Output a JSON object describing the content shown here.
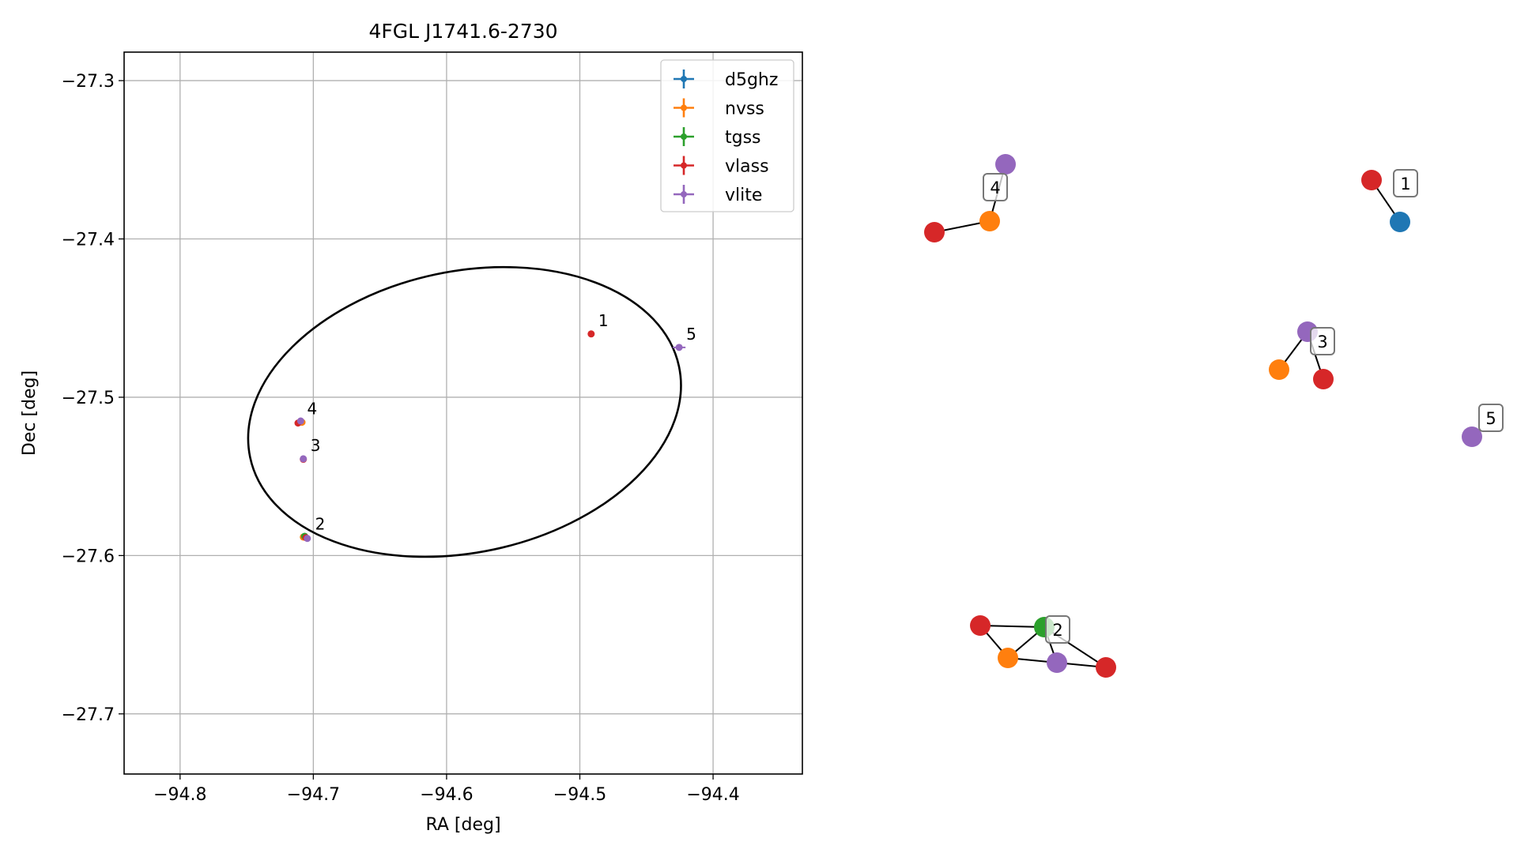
{
  "chart_data": [
    {
      "type": "scatter",
      "title": "4FGL J1741.6-2730",
      "xlabel": "RA [deg]",
      "ylabel": "Dec [deg]",
      "xlim": [
        -94.842,
        -94.333
      ],
      "ylim": [
        -27.738,
        -27.282
      ],
      "xticks": [
        -94.8,
        -94.7,
        -94.6,
        -94.5,
        -94.4
      ],
      "xtick_labels": [
        "−94.8",
        "−94.7",
        "−94.6",
        "−94.5",
        "−94.4"
      ],
      "yticks": [
        -27.3,
        -27.4,
        -27.5,
        -27.6,
        -27.7
      ],
      "ytick_labels": [
        "−27.3",
        "−27.4",
        "−27.5",
        "−27.6",
        "−27.7"
      ],
      "grid": true,
      "legend": {
        "placement": "top-right",
        "entries": [
          {
            "name": "d5ghz",
            "color": "#1f77b4"
          },
          {
            "name": "nvss",
            "color": "#ff7f0e"
          },
          {
            "name": "tgss",
            "color": "#2ca02c"
          },
          {
            "name": "vlass",
            "color": "#d62728"
          },
          {
            "name": "vlite",
            "color": "#9467bd"
          }
        ]
      },
      "ellipse": {
        "center": [
          -94.5865,
          -27.5093
        ],
        "semi_major_ra": 0.1645,
        "semi_minor_dec": 0.0888,
        "color": "#000000"
      },
      "series": [
        {
          "name": "d5ghz",
          "color": "#1f77b4",
          "points": []
        },
        {
          "name": "nvss",
          "color": "#ff7f0e",
          "points": [
            {
              "x": -94.7075,
              "y": -27.5883
            },
            {
              "x": -94.7085,
              "y": -27.5158
            }
          ]
        },
        {
          "name": "tgss",
          "color": "#2ca02c",
          "points": [
            {
              "x": -94.7065,
              "y": -27.5878
            }
          ]
        },
        {
          "name": "vlass",
          "color": "#d62728",
          "points": [
            {
              "x": -94.4915,
              "y": -27.46
            },
            {
              "x": -94.7075,
              "y": -27.5392
            },
            {
              "x": -94.7115,
              "y": -27.5163
            },
            {
              "x": -94.7055,
              "y": -27.5887
            }
          ]
        },
        {
          "name": "vlite",
          "color": "#9467bd",
          "points": [
            {
              "x": -94.4255,
              "y": -27.4685,
              "xerr": 0.0048
            },
            {
              "x": -94.7075,
              "y": -27.5389
            },
            {
              "x": -94.7045,
              "y": -27.5892
            },
            {
              "x": -94.7095,
              "y": -27.515
            }
          ]
        }
      ],
      "annotations": [
        {
          "text": "1",
          "x": -94.4915,
          "y": -27.46
        },
        {
          "text": "2",
          "x": -94.704,
          "y": -27.5885
        },
        {
          "text": "3",
          "x": -94.7075,
          "y": -27.539
        },
        {
          "text": "4",
          "x": -94.71,
          "y": -27.5158
        },
        {
          "text": "5",
          "x": -94.4255,
          "y": -27.4685
        }
      ]
    },
    {
      "type": "network",
      "clusters": [
        {
          "label": "1",
          "nodes": [
            "vlass",
            "d5ghz"
          ],
          "edges": [
            [
              0,
              1
            ]
          ]
        },
        {
          "label": "2",
          "nodes": [
            "vlass",
            "tgss",
            "nvss",
            "vlite",
            "vlass"
          ],
          "edges": [
            [
              0,
              1
            ],
            [
              0,
              2
            ],
            [
              1,
              2
            ],
            [
              1,
              3
            ],
            [
              2,
              3
            ],
            [
              3,
              4
            ],
            [
              1,
              4
            ]
          ]
        },
        {
          "label": "3",
          "nodes": [
            "vlite",
            "nvss",
            "vlass"
          ],
          "edges": [
            [
              0,
              1
            ],
            [
              0,
              2
            ]
          ]
        },
        {
          "label": "4",
          "nodes": [
            "vlite",
            "nvss",
            "vlass"
          ],
          "edges": [
            [
              0,
              1
            ],
            [
              1,
              2
            ]
          ]
        },
        {
          "label": "5",
          "nodes": [
            "vlite"
          ],
          "edges": []
        }
      ]
    }
  ]
}
